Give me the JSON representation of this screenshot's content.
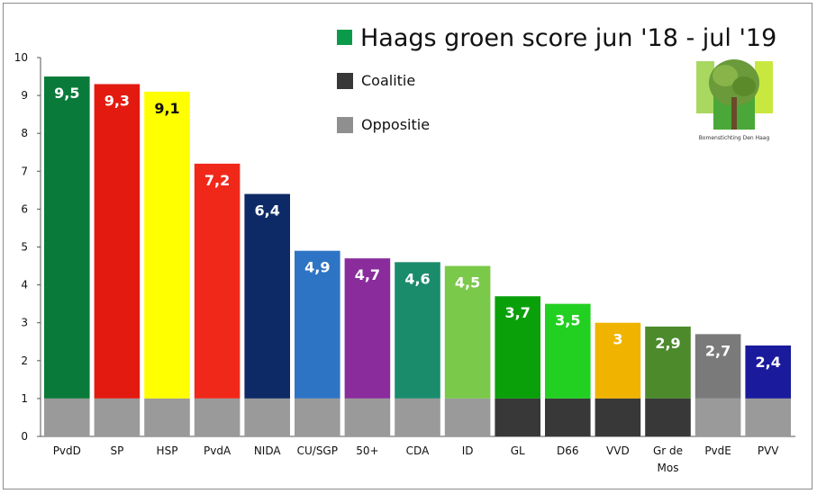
{
  "chart_data": {
    "type": "bar",
    "title": "Haags groen score jun '18 - jul '19",
    "categories": [
      "PvdD",
      "SP",
      "HSP",
      "PvdA",
      "NIDA",
      "CU/SGP",
      "50+",
      "CDA",
      "ID",
      "GL",
      "D66",
      "VVD",
      "Gr de Mos",
      "PvdE",
      "PVV"
    ],
    "values": [
      9.5,
      9.3,
      9.1,
      7.2,
      6.4,
      4.9,
      4.7,
      4.6,
      4.5,
      3.7,
      3.5,
      3.0,
      2.9,
      2.7,
      2.4
    ],
    "value_labels": [
      "9,5",
      "9,3",
      "9,1",
      "7,2",
      "6,4",
      "4,9",
      "4,7",
      "4,6",
      "4,5",
      "3,7",
      "3,5",
      "3",
      "2,9",
      "2,7",
      "2,4"
    ],
    "bar_colors": [
      "#0a7a3a",
      "#e31a10",
      "#ffff00",
      "#f0281a",
      "#0e2a66",
      "#2e74c4",
      "#8a2c9c",
      "#1a8c6c",
      "#7bc94a",
      "#0aa00a",
      "#22d022",
      "#f0b400",
      "#4c8a2c",
      "#7a7a7a",
      "#1a1a9c"
    ],
    "value_label_colors": [
      "#ffffff",
      "#ffffff",
      "#111111",
      "#ffffff",
      "#ffffff",
      "#ffffff",
      "#ffffff",
      "#ffffff",
      "#ffffff",
      "#ffffff",
      "#ffffff",
      "#ffffff",
      "#ffffff",
      "#ffffff",
      "#ffffff"
    ],
    "base_segment_value": 1,
    "base_group": [
      "oppositie",
      "oppositie",
      "oppositie",
      "oppositie",
      "oppositie",
      "oppositie",
      "oppositie",
      "oppositie",
      "oppositie",
      "coalitie",
      "coalitie",
      "coalitie",
      "coalitie",
      "oppositie",
      "oppositie"
    ],
    "ylim": [
      0,
      10
    ],
    "yticks": [
      "0",
      "1",
      "2",
      "3",
      "4",
      "5",
      "6",
      "7",
      "8",
      "9",
      "10"
    ],
    "xlabel": "",
    "ylabel": "",
    "grid": false,
    "legend": [
      {
        "label": "Haags groen score jun '18 - jul '19",
        "color": "#0a9a4a"
      },
      {
        "label": "Coalitie",
        "color": "#383838"
      },
      {
        "label": "Oppositie",
        "color": "#8f8f8f"
      }
    ],
    "legend_position": "top-right"
  },
  "colors": {
    "coalitie": "#383838",
    "oppositie": "#9a9a9a"
  },
  "logo": {
    "caption": "Bomenstichting Den Haag",
    "icon": "tree-logo-icon"
  }
}
